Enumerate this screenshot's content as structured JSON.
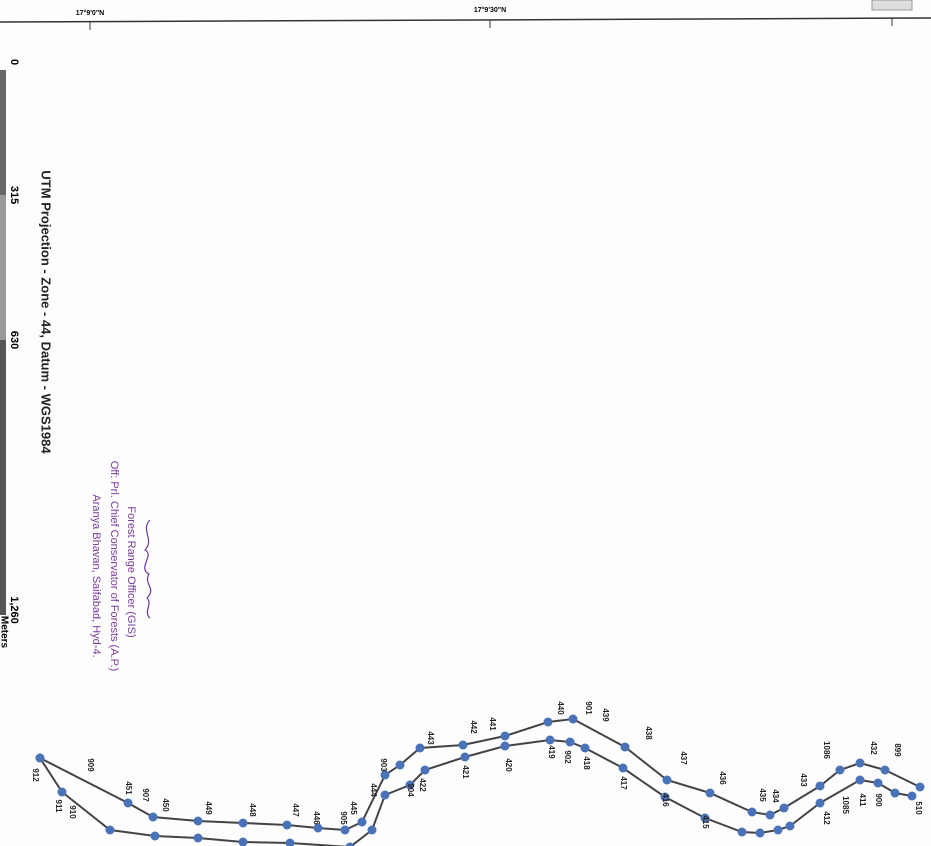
{
  "top_labels": [
    "17°9'0\"N",
    "17°9'30\"N"
  ],
  "scale": {
    "ticks": [
      "0",
      "315",
      "630",
      "1,260"
    ],
    "unit": "Meters"
  },
  "projection": "UTM Projection - Zone - 44, Datum - WGS1984",
  "stamp": [
    "Forest Range Officer (GIS)",
    "Off: Prl. Chief Conservator of Forests (A.P.)",
    "Aranya Bhavan, Saifabad, Hyd-4."
  ],
  "point_labels": [
    "912",
    "911",
    "910",
    "909",
    "451",
    "907",
    "450",
    "449",
    "448",
    "447",
    "446",
    "445",
    "905",
    "444",
    "903",
    "443",
    "422",
    "904",
    "442",
    "421",
    "441",
    "420",
    "440",
    "419",
    "901",
    "902",
    "418",
    "439",
    "417",
    "438",
    "416",
    "437",
    "415",
    "436",
    "435",
    "434",
    "433",
    "1086",
    "412",
    "1085",
    "411",
    "432",
    "900",
    "899",
    "510"
  ]
}
